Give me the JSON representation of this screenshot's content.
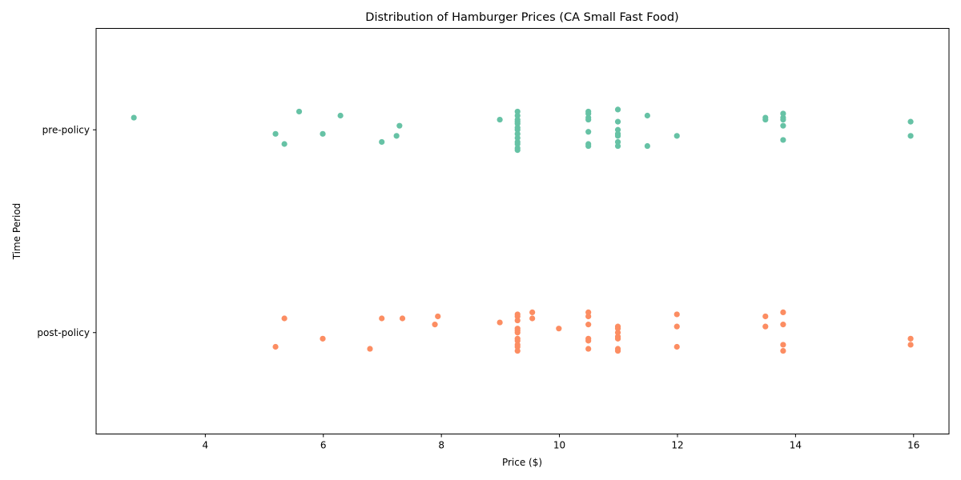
{
  "chart_data": {
    "type": "scatter",
    "title": "Distribution of Hamburger Prices (CA Small Fast Food)",
    "xlabel": "Price ($)",
    "ylabel": "Time Period",
    "xlim": [
      2.15,
      16.6
    ],
    "x_ticks": [
      "4",
      "6",
      "8",
      "10",
      "12",
      "14",
      "16"
    ],
    "categories": [
      "pre-policy",
      "post-policy"
    ],
    "grid": false,
    "legend": "none",
    "series": [
      {
        "category": "pre-policy",
        "color": "#66c2a5",
        "points": [
          {
            "x": 2.79,
            "j": -0.06
          },
          {
            "x": 5.19,
            "j": 0.02
          },
          {
            "x": 5.34,
            "j": 0.07
          },
          {
            "x": 5.59,
            "j": -0.09
          },
          {
            "x": 5.99,
            "j": 0.02
          },
          {
            "x": 6.29,
            "j": -0.07
          },
          {
            "x": 6.99,
            "j": 0.06
          },
          {
            "x": 7.24,
            "j": 0.03
          },
          {
            "x": 7.29,
            "j": -0.02
          },
          {
            "x": 8.99,
            "j": -0.05
          },
          {
            "x": 9.29,
            "j": -0.09
          },
          {
            "x": 9.29,
            "j": -0.07
          },
          {
            "x": 9.29,
            "j": -0.05
          },
          {
            "x": 9.29,
            "j": -0.04
          },
          {
            "x": 9.29,
            "j": -0.03
          },
          {
            "x": 9.29,
            "j": -0.01
          },
          {
            "x": 9.29,
            "j": 0.0
          },
          {
            "x": 9.29,
            "j": 0.02
          },
          {
            "x": 9.29,
            "j": 0.04
          },
          {
            "x": 9.29,
            "j": 0.06
          },
          {
            "x": 9.29,
            "j": 0.07
          },
          {
            "x": 9.29,
            "j": 0.09
          },
          {
            "x": 9.29,
            "j": 0.1
          },
          {
            "x": 10.49,
            "j": -0.09
          },
          {
            "x": 10.49,
            "j": -0.08
          },
          {
            "x": 10.49,
            "j": -0.06
          },
          {
            "x": 10.49,
            "j": -0.05
          },
          {
            "x": 10.49,
            "j": 0.01
          },
          {
            "x": 10.49,
            "j": 0.07
          },
          {
            "x": 10.49,
            "j": 0.08
          },
          {
            "x": 10.99,
            "j": -0.1
          },
          {
            "x": 10.99,
            "j": -0.04
          },
          {
            "x": 10.99,
            "j": 0.0
          },
          {
            "x": 10.99,
            "j": 0.02
          },
          {
            "x": 10.99,
            "j": 0.03
          },
          {
            "x": 10.99,
            "j": 0.06
          },
          {
            "x": 10.99,
            "j": 0.08
          },
          {
            "x": 11.49,
            "j": -0.07
          },
          {
            "x": 11.49,
            "j": 0.08
          },
          {
            "x": 11.99,
            "j": 0.03
          },
          {
            "x": 13.49,
            "j": -0.06
          },
          {
            "x": 13.49,
            "j": -0.05
          },
          {
            "x": 13.79,
            "j": -0.08
          },
          {
            "x": 13.79,
            "j": -0.06
          },
          {
            "x": 13.79,
            "j": -0.05
          },
          {
            "x": 13.79,
            "j": -0.02
          },
          {
            "x": 13.79,
            "j": 0.05
          },
          {
            "x": 15.95,
            "j": -0.04
          },
          {
            "x": 15.95,
            "j": 0.03
          }
        ]
      },
      {
        "category": "post-policy",
        "color": "#fc8d62",
        "points": [
          {
            "x": 5.19,
            "j": 0.07
          },
          {
            "x": 5.34,
            "j": -0.07
          },
          {
            "x": 5.99,
            "j": 0.03
          },
          {
            "x": 6.79,
            "j": 0.08
          },
          {
            "x": 6.99,
            "j": -0.07
          },
          {
            "x": 7.34,
            "j": -0.07
          },
          {
            "x": 7.89,
            "j": -0.04
          },
          {
            "x": 7.94,
            "j": -0.08
          },
          {
            "x": 8.99,
            "j": -0.05
          },
          {
            "x": 9.29,
            "j": -0.09
          },
          {
            "x": 9.29,
            "j": -0.08
          },
          {
            "x": 9.29,
            "j": -0.06
          },
          {
            "x": 9.29,
            "j": -0.02
          },
          {
            "x": 9.29,
            "j": -0.01
          },
          {
            "x": 9.29,
            "j": 0.0
          },
          {
            "x": 9.29,
            "j": 0.03
          },
          {
            "x": 9.29,
            "j": 0.04
          },
          {
            "x": 9.29,
            "j": 0.06
          },
          {
            "x": 9.29,
            "j": 0.07
          },
          {
            "x": 9.29,
            "j": 0.09
          },
          {
            "x": 9.54,
            "j": -0.1
          },
          {
            "x": 9.54,
            "j": -0.07
          },
          {
            "x": 9.99,
            "j": -0.02
          },
          {
            "x": 10.49,
            "j": -0.1
          },
          {
            "x": 10.49,
            "j": -0.08
          },
          {
            "x": 10.49,
            "j": -0.04
          },
          {
            "x": 10.49,
            "j": 0.03
          },
          {
            "x": 10.49,
            "j": 0.04
          },
          {
            "x": 10.49,
            "j": 0.08
          },
          {
            "x": 10.99,
            "j": -0.03
          },
          {
            "x": 10.99,
            "j": -0.02
          },
          {
            "x": 10.99,
            "j": 0.0
          },
          {
            "x": 10.99,
            "j": 0.02
          },
          {
            "x": 10.99,
            "j": 0.03
          },
          {
            "x": 10.99,
            "j": 0.08
          },
          {
            "x": 10.99,
            "j": 0.09
          },
          {
            "x": 11.99,
            "j": -0.09
          },
          {
            "x": 11.99,
            "j": -0.03
          },
          {
            "x": 11.99,
            "j": 0.07
          },
          {
            "x": 13.49,
            "j": -0.08
          },
          {
            "x": 13.49,
            "j": -0.03
          },
          {
            "x": 13.79,
            "j": -0.1
          },
          {
            "x": 13.79,
            "j": -0.04
          },
          {
            "x": 13.79,
            "j": 0.06
          },
          {
            "x": 13.79,
            "j": 0.09
          },
          {
            "x": 15.95,
            "j": 0.03
          },
          {
            "x": 15.95,
            "j": 0.06
          }
        ]
      }
    ]
  }
}
